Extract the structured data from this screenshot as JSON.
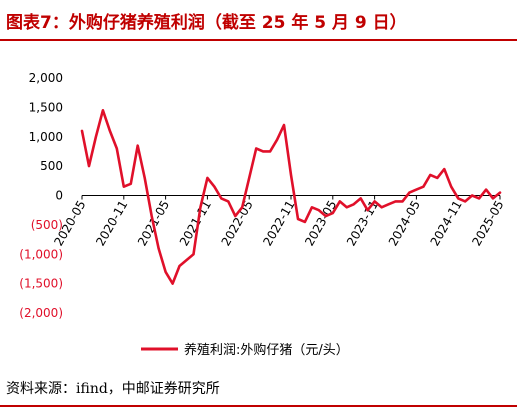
{
  "title": "图表7：外购仔猪养殖利润（截至 25 年 5 月 9 日）",
  "source": "资料来源：ifind，中邮证券研究所",
  "colors": {
    "series": "#e0102a",
    "title": "#c00000",
    "negative_tick": "#e0102a",
    "positive_tick": "#000000"
  },
  "chart_data": {
    "type": "line",
    "ylim": [
      -2000,
      2000
    ],
    "y_ticks": [
      {
        "value": 2000,
        "label": "2,000"
      },
      {
        "value": 1500,
        "label": "1,500"
      },
      {
        "value": 1000,
        "label": "1,000"
      },
      {
        "value": 500,
        "label": "500"
      },
      {
        "value": 0,
        "label": "0"
      },
      {
        "value": -500,
        "label": "(500)"
      },
      {
        "value": -1000,
        "label": "(1,000)"
      },
      {
        "value": -1500,
        "label": "(1,500)"
      },
      {
        "value": -2000,
        "label": "(2,000)"
      }
    ],
    "x_ticks": [
      {
        "t": "2020-05",
        "label": "2020-05"
      },
      {
        "t": "2020-11",
        "label": "2020-11"
      },
      {
        "t": "2021-05",
        "label": "2021-05"
      },
      {
        "t": "2021-11",
        "label": "2021-11"
      },
      {
        "t": "2022-05",
        "label": "2022-05"
      },
      {
        "t": "2022-11",
        "label": "2022-11"
      },
      {
        "t": "2023-05",
        "label": "2023-05"
      },
      {
        "t": "2023-11",
        "label": "2023-11"
      },
      {
        "t": "2024-05",
        "label": "2024-05"
      },
      {
        "t": "2024-11",
        "label": "2024-11"
      },
      {
        "t": "2025-05",
        "label": "2025-05"
      }
    ],
    "xlim": [
      "2020-05",
      "2025-05"
    ],
    "series": [
      {
        "name": "养殖利润:外购仔猪（元/头）",
        "points": [
          [
            "2020-05",
            1100
          ],
          [
            "2020-06",
            500
          ],
          [
            "2020-07",
            1000
          ],
          [
            "2020-08",
            1450
          ],
          [
            "2020-09",
            1100
          ],
          [
            "2020-10",
            800
          ],
          [
            "2020-11",
            150
          ],
          [
            "2020-12",
            200
          ],
          [
            "2021-01",
            850
          ],
          [
            "2021-02",
            300
          ],
          [
            "2021-03",
            -350
          ],
          [
            "2021-04",
            -900
          ],
          [
            "2021-05",
            -1300
          ],
          [
            "2021-06",
            -1500
          ],
          [
            "2021-07",
            -1200
          ],
          [
            "2021-08",
            -1100
          ],
          [
            "2021-09",
            -1000
          ],
          [
            "2021-10",
            -200
          ],
          [
            "2021-11",
            300
          ],
          [
            "2021-12",
            150
          ],
          [
            "2022-01",
            -50
          ],
          [
            "2022-02",
            -100
          ],
          [
            "2022-03",
            -350
          ],
          [
            "2022-04",
            -200
          ],
          [
            "2022-05",
            300
          ],
          [
            "2022-06",
            800
          ],
          [
            "2022-07",
            750
          ],
          [
            "2022-08",
            750
          ],
          [
            "2022-09",
            950
          ],
          [
            "2022-10",
            1200
          ],
          [
            "2022-11",
            350
          ],
          [
            "2022-12",
            -400
          ],
          [
            "2023-01",
            -450
          ],
          [
            "2023-02",
            -200
          ],
          [
            "2023-03",
            -250
          ],
          [
            "2023-04",
            -350
          ],
          [
            "2023-05",
            -300
          ],
          [
            "2023-06",
            -100
          ],
          [
            "2023-07",
            -200
          ],
          [
            "2023-08",
            -150
          ],
          [
            "2023-09",
            -50
          ],
          [
            "2023-10",
            -250
          ],
          [
            "2023-11",
            -100
          ],
          [
            "2023-12",
            -200
          ],
          [
            "2024-01",
            -150
          ],
          [
            "2024-02",
            -100
          ],
          [
            "2024-03",
            -100
          ],
          [
            "2024-04",
            50
          ],
          [
            "2024-05",
            100
          ],
          [
            "2024-06",
            150
          ],
          [
            "2024-07",
            350
          ],
          [
            "2024-08",
            300
          ],
          [
            "2024-09",
            450
          ],
          [
            "2024-10",
            150
          ],
          [
            "2024-11",
            -50
          ],
          [
            "2024-12",
            -100
          ],
          [
            "2025-01",
            0
          ],
          [
            "2025-02",
            -50
          ],
          [
            "2025-03",
            100
          ],
          [
            "2025-04",
            -50
          ],
          [
            "2025-05",
            50
          ]
        ]
      }
    ],
    "legend": "bottom-center",
    "grid": false
  }
}
